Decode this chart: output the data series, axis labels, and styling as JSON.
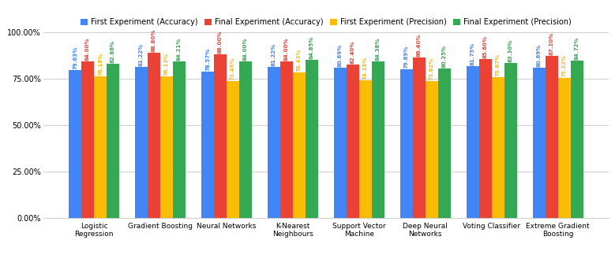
{
  "categories": [
    "Logistic\nRegression",
    "Gradient Boosting",
    "Neural Networks",
    "K-Nearest\nNeighbours",
    "Support Vector\nMachine",
    "Deep Neural\nNetworks",
    "Voting Classifier",
    "Extreme Gradient\nBoosting"
  ],
  "series": [
    {
      "label": "First Experiment (Accuracy)",
      "color": "#4285F4",
      "values": [
        79.63,
        81.22,
        78.57,
        81.22,
        80.69,
        79.89,
        81.75,
        80.69
      ]
    },
    {
      "label": "Final Experiment (Accuracy)",
      "color": "#EA4335",
      "values": [
        84.0,
        88.8,
        88.0,
        84.0,
        82.4,
        86.4,
        85.6,
        87.2
      ]
    },
    {
      "label": "First Experiment (Precision)",
      "color": "#FBBC05",
      "values": [
        76.19,
        76.13,
        73.45,
        78.43,
        74.15,
        73.62,
        75.87,
        75.22
      ]
    },
    {
      "label": "Final Experiment (Precision)",
      "color": "#34A853",
      "values": [
        82.86,
        84.21,
        84.0,
        84.85,
        84.38,
        80.25,
        83.3,
        84.72
      ]
    }
  ],
  "ylim": [
    0,
    100
  ],
  "yticks": [
    0,
    25,
    50,
    75,
    100
  ],
  "ytick_labels": [
    "0.00%",
    "25.00%",
    "50.00%",
    "75.00%",
    "100.00%"
  ],
  "bar_width": 0.19,
  "background_color": "#ffffff",
  "grid_color": "#d0d0d0",
  "label_fontsize": 5.0,
  "legend_fontsize": 7.0,
  "tick_fontsize": 7.0,
  "xlabel_fontsize": 6.5
}
